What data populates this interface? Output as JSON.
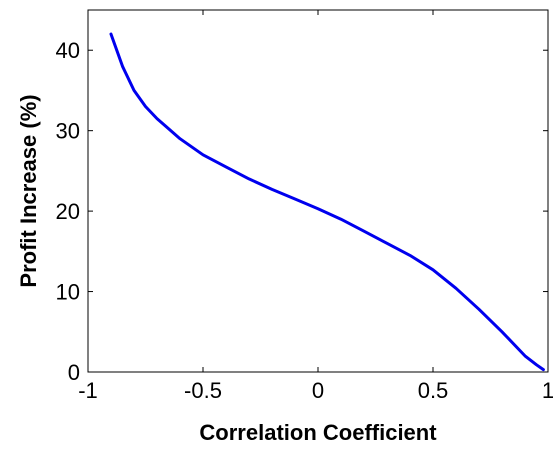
{
  "chart_data": {
    "type": "line",
    "title": "",
    "xlabel": "Correlation Coefficient",
    "ylabel": "Profit Increase (%)",
    "xlim": [
      -1,
      1
    ],
    "ylim": [
      0,
      45
    ],
    "x_ticks": [
      -1,
      -0.5,
      0,
      0.5,
      1
    ],
    "x_tick_labels": [
      "-1",
      "-0.5",
      "0",
      "0.5",
      "1"
    ],
    "y_ticks": [
      0,
      10,
      20,
      30,
      40
    ],
    "y_tick_labels": [
      "0",
      "10",
      "20",
      "30",
      "40"
    ],
    "grid": false,
    "series": [
      {
        "color": "#0000ee",
        "x": [
          -0.9,
          -0.85,
          -0.8,
          -0.75,
          -0.7,
          -0.6,
          -0.5,
          -0.4,
          -0.3,
          -0.2,
          -0.1,
          0,
          0.1,
          0.2,
          0.3,
          0.4,
          0.5,
          0.6,
          0.7,
          0.8,
          0.9,
          0.95,
          0.98
        ],
        "y": [
          42,
          38,
          35,
          33,
          31.5,
          29,
          27,
          25.5,
          24,
          22.7,
          21.5,
          20.3,
          19,
          17.5,
          16,
          14.5,
          12.7,
          10.4,
          7.8,
          5,
          2,
          0.9,
          0.3
        ]
      }
    ]
  }
}
